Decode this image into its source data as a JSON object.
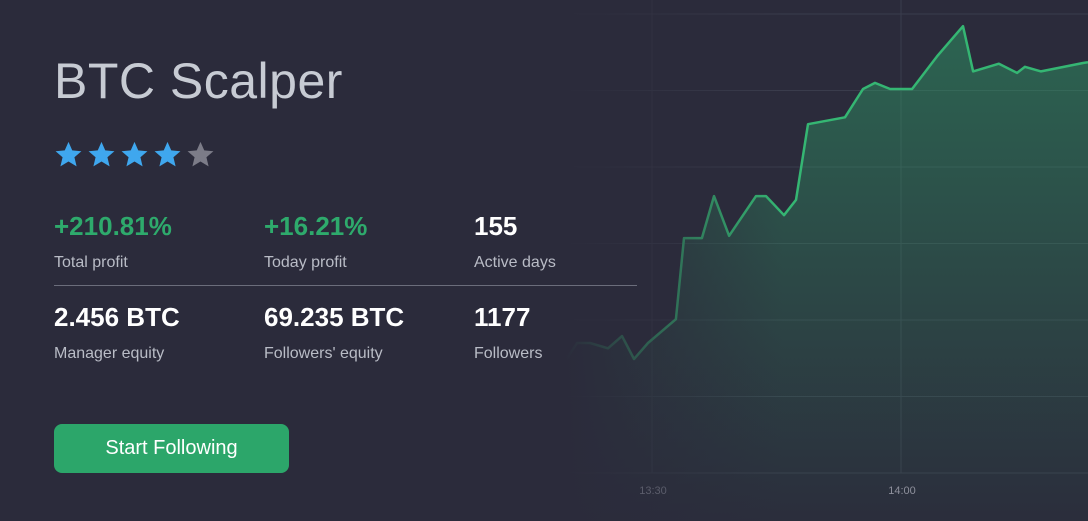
{
  "title": "BTC Scalper",
  "rating": {
    "value": 4,
    "max": 5,
    "filled_color": "#3fa7ee",
    "empty_color": "#7c7c88"
  },
  "stats": [
    {
      "value": "+210.81%",
      "label": "Total profit",
      "positive": true
    },
    {
      "value": "+16.21%",
      "label": "Today profit",
      "positive": true
    },
    {
      "value": "155",
      "label": "Active days",
      "positive": false
    },
    {
      "value": "2.456 BTC",
      "label": "Manager equity",
      "positive": false
    },
    {
      "value": "69.235 BTC",
      "label": "Followers' equity",
      "positive": false
    },
    {
      "value": "1177",
      "label": "Followers",
      "positive": false
    }
  ],
  "button": {
    "label": "Start Following"
  },
  "colors": {
    "background": "#2b2b3b",
    "accent": "#2eaa6c",
    "line": "#35b673"
  },
  "chart_data": {
    "type": "area",
    "title": "",
    "xlabel": "",
    "ylabel": "",
    "x_ticks": [
      "13:30",
      "14:00"
    ],
    "grid": true,
    "ylim": [
      0,
      6
    ],
    "x": [
      "13:18:55",
      "13:19:46",
      "13:20:58",
      "13:22:32",
      "13:24:42",
      "13:26:23",
      "13:27:50",
      "13:29:31",
      "13:32:53",
      "13:33:51",
      "13:36:01",
      "13:37:28",
      "13:39:17",
      "13:42:32",
      "13:43:44",
      "13:45:54",
      "13:47:21",
      "13:48:48",
      "13:53:15",
      "13:55:25",
      "13:56:52",
      "13:58:41",
      "14:01:20",
      "14:04:27",
      "14:07:28",
      "14:08:41",
      "14:11:48",
      "14:13:59",
      "14:14:56",
      "14:16:52",
      "14:21:56",
      "14:22:32"
    ],
    "y": [
      1.65,
      1.5,
      1.7,
      1.7,
      1.63,
      1.79,
      1.49,
      1.7,
      2.01,
      3.07,
      3.07,
      3.62,
      3.1,
      3.62,
      3.62,
      3.37,
      3.57,
      4.56,
      4.65,
      5.02,
      5.1,
      5.02,
      5.02,
      5.46,
      5.84,
      5.25,
      5.35,
      5.23,
      5.31,
      5.25,
      5.36,
      5.37
    ]
  }
}
